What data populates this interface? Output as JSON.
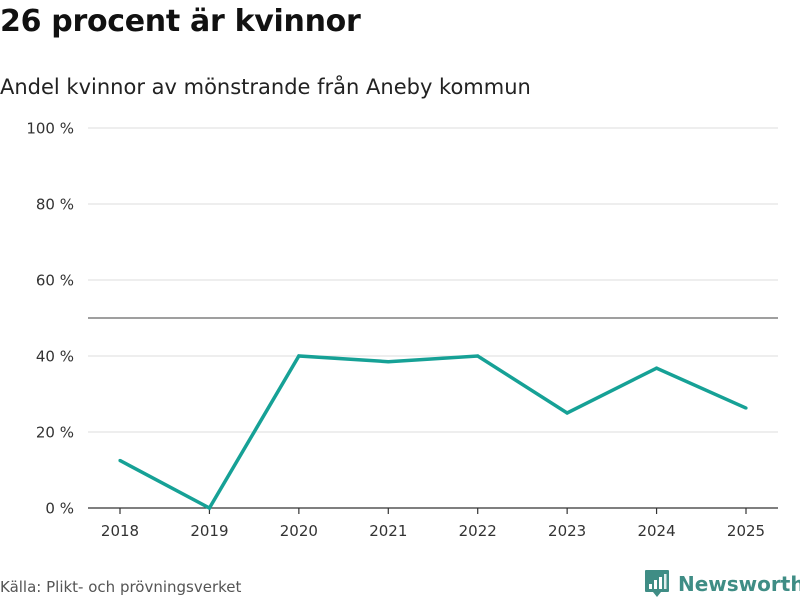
{
  "header": {
    "title": "26 procent är kvinnor",
    "subtitle": "Andel kvinnor av mönstrande från Aneby kommun"
  },
  "footer": {
    "source": "Källa: Plikt- och prövningsverket",
    "brand": "Newsworthy",
    "brand_icon": "newsworthy-logo-icon"
  },
  "colors": {
    "line": "#16a196",
    "grid": "#dddddd",
    "reference": "#666666",
    "axis": "#333333",
    "brand": "#3f8d85"
  },
  "chart_data": {
    "type": "line",
    "title": "26 procent är kvinnor",
    "subtitle": "Andel kvinnor av mönstrande från Aneby kommun",
    "xlabel": "",
    "ylabel": "",
    "x": [
      "2018",
      "2019",
      "2020",
      "2021",
      "2022",
      "2023",
      "2024",
      "2025"
    ],
    "series": [
      {
        "values": [
          12.5,
          0,
          40,
          38.5,
          40,
          25,
          36.8,
          26.3
        ]
      }
    ],
    "ylim": [
      0,
      100
    ],
    "yticks": [
      0,
      20,
      40,
      60,
      80,
      100
    ],
    "ytick_labels": [
      "0 %",
      "20 %",
      "40 %",
      "60 %",
      "80 %",
      "100 %"
    ],
    "reference_line": 50,
    "grid": true,
    "legend": "none"
  }
}
